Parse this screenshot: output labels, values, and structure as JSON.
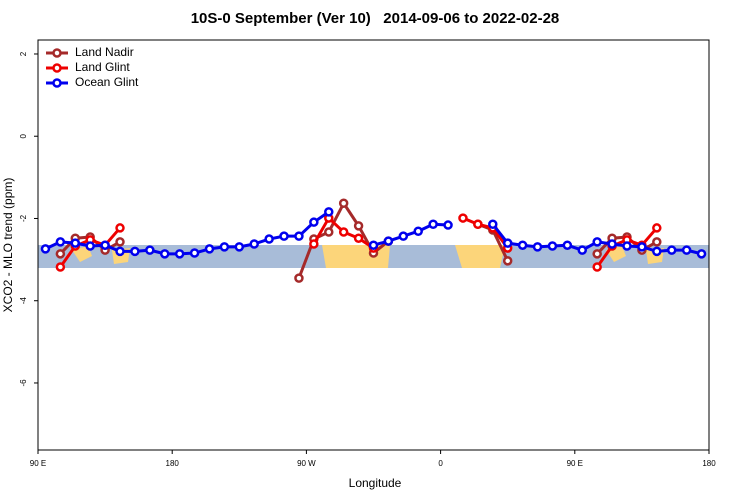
{
  "chart_data": {
    "type": "line",
    "title": "10S-0 September (Ver 10)   2014-09-06 to 2022-02-28",
    "x_label": "Longitude",
    "y_label": "XCO2 - MLO trend (ppm)",
    "x": [
      95,
      105,
      115,
      125,
      135,
      145,
      155,
      165,
      175,
      185,
      195,
      205,
      215,
      225,
      235,
      245,
      255,
      265,
      275,
      285,
      295,
      305,
      315,
      325,
      335,
      345,
      355,
      365,
      375,
      385,
      395,
      405,
      415,
      425,
      435,
      445,
      455,
      465,
      475,
      485,
      495,
      505,
      515,
      525,
      535
    ],
    "xlim": [
      90,
      540
    ],
    "xticks": [
      {
        "value": 90,
        "label": "90 E"
      },
      180,
      {
        "value": 270,
        "label": "90 W"
      },
      {
        "value": 360,
        "label": "0"
      },
      {
        "value": 450,
        "label": "90 E"
      },
      {
        "value": 540,
        "label": "180"
      }
    ],
    "ylim": [
      -7.63,
      2.34
    ],
    "yticks": [
      -6,
      -4,
      -2,
      0,
      2
    ],
    "legend": "upper left",
    "series": [
      {
        "name": "Land Nadir",
        "color": "#a52a2a",
        "values": [
          null,
          -2.86,
          -2.48,
          -2.45,
          -2.77,
          -2.57,
          null,
          null,
          null,
          null,
          null,
          null,
          null,
          null,
          null,
          null,
          null,
          -3.45,
          -2.5,
          -2.33,
          -1.63,
          -2.18,
          -2.84,
          -2.55,
          null,
          null,
          null,
          null,
          null,
          -2.14,
          -2.28,
          -3.03,
          null,
          null,
          null,
          null,
          null,
          -2.86,
          -2.48,
          -2.45,
          -2.77,
          -2.57,
          null,
          null,
          null
        ]
      },
      {
        "name": "Land Glint",
        "color": "#ee0000",
        "values": [
          null,
          -3.18,
          -2.67,
          -2.52,
          -2.65,
          -2.23,
          null,
          null,
          null,
          null,
          null,
          null,
          null,
          null,
          null,
          null,
          null,
          null,
          -2.62,
          -1.99,
          -2.33,
          -2.48,
          -2.72,
          null,
          null,
          null,
          null,
          null,
          -1.99,
          -2.14,
          -2.23,
          -2.72,
          null,
          null,
          null,
          null,
          null,
          -3.18,
          -2.67,
          -2.52,
          -2.65,
          -2.23,
          null,
          null,
          null
        ]
      },
      {
        "name": "Ocean Glint",
        "color": "#0000ee",
        "values": [
          -2.74,
          -2.57,
          -2.6,
          -2.67,
          -2.65,
          -2.8,
          -2.8,
          -2.77,
          -2.86,
          -2.86,
          -2.84,
          -2.74,
          -2.69,
          -2.69,
          -2.62,
          -2.5,
          -2.43,
          -2.43,
          -2.09,
          -1.84,
          null,
          null,
          -2.65,
          -2.55,
          -2.43,
          -2.31,
          -2.14,
          -2.16,
          null,
          null,
          -2.14,
          -2.6,
          -2.65,
          -2.69,
          -2.67,
          -2.65,
          -2.77,
          -2.57,
          -2.62,
          -2.67,
          -2.69,
          -2.8,
          -2.77,
          -2.77,
          -2.86
        ]
      }
    ]
  }
}
